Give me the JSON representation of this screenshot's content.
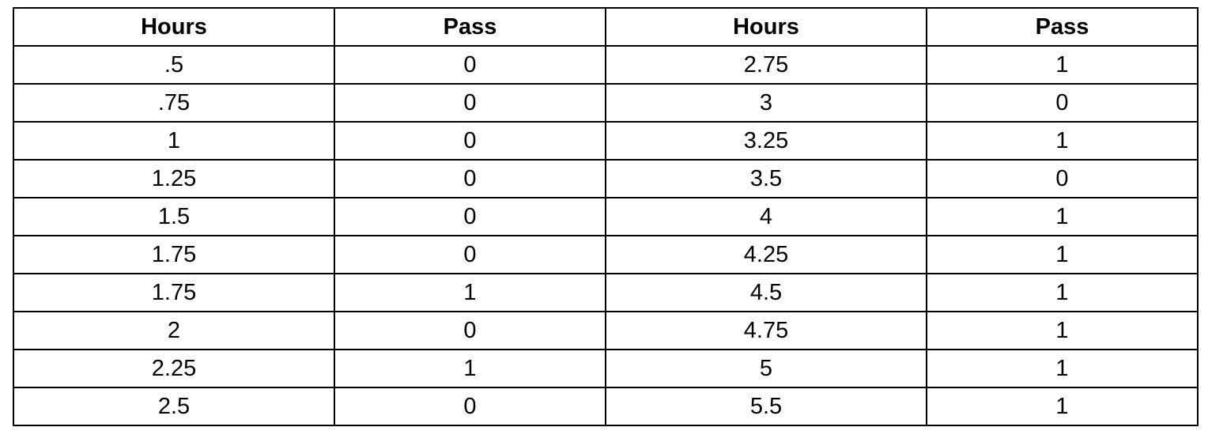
{
  "table": {
    "headers": [
      "Hours",
      "Pass",
      "Hours",
      "Pass"
    ],
    "rows": [
      [
        ".5",
        "0",
        "2.75",
        "1"
      ],
      [
        ".75",
        "0",
        "3",
        "0"
      ],
      [
        "1",
        "0",
        "3.25",
        "1"
      ],
      [
        "1.25",
        "0",
        "3.5",
        "0"
      ],
      [
        "1.5",
        "0",
        "4",
        "1"
      ],
      [
        "1.75",
        "0",
        "4.25",
        "1"
      ],
      [
        "1.75",
        "1",
        "4.5",
        "1"
      ],
      [
        "2",
        "0",
        "4.75",
        "1"
      ],
      [
        "2.25",
        "1",
        "5",
        "1"
      ],
      [
        "2.5",
        "0",
        "5.5",
        "1"
      ]
    ]
  }
}
